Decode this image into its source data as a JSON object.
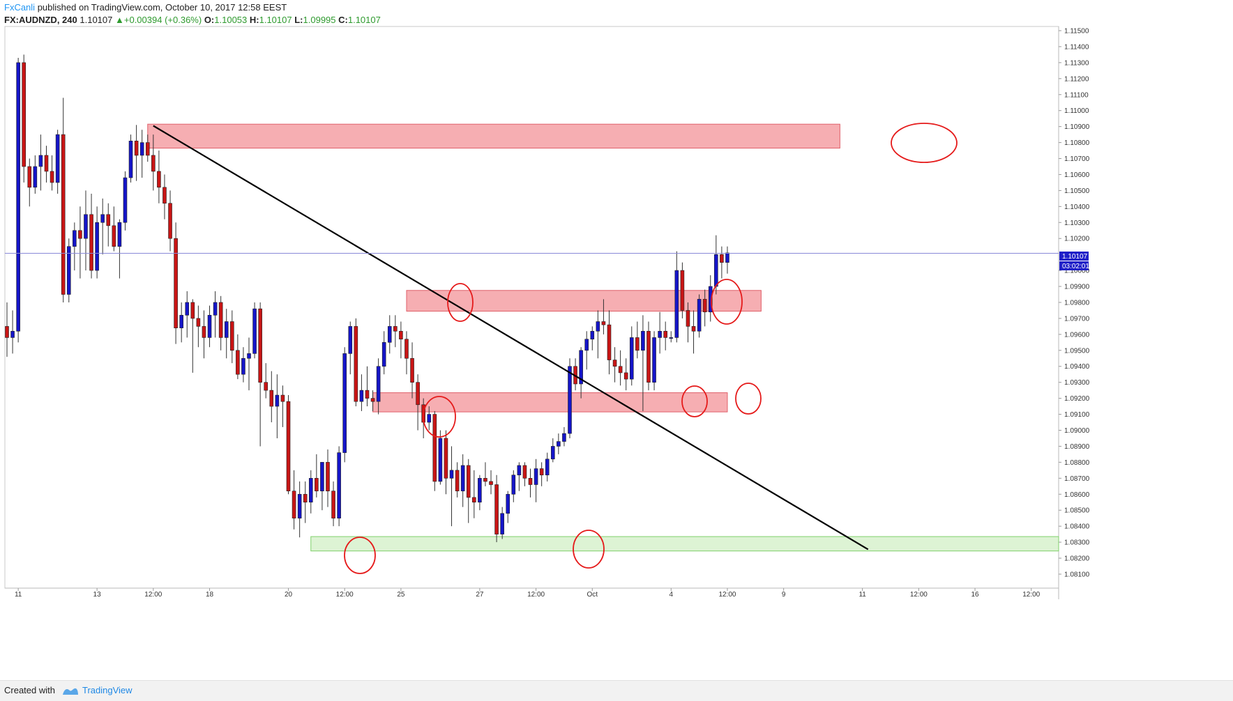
{
  "header": {
    "author": "FxCanli",
    "published": " published on TradingView.com, October 10, 2017 12:58 EEST",
    "symbol": "FX:AUDNZD, 240",
    "last": "1.10107",
    "change": "+0.00394 (+0.36%)",
    "o_label": "O:",
    "o_value": "1.10053",
    "h_label": "H:",
    "h_value": "1.10107",
    "l_label": "L:",
    "l_value": "1.09995",
    "c_label": "C:",
    "c_value": "1.10107"
  },
  "footer": {
    "created_with": "Created with",
    "brand": "TradingView"
  },
  "price_tags": {
    "last_price": "1.10107",
    "countdown": "03:02:01"
  },
  "colors": {
    "up_candle": "#1515c8",
    "down_candle": "#c81515",
    "resistance_zone": "#f4a0a5",
    "support_zone": "#d9f2cf",
    "price_line": "#8a8ad8",
    "annotation": "#e51a1a"
  },
  "chart_data": {
    "type": "candlestick",
    "title": "FX:AUDNZD, 240",
    "xlabel": "",
    "ylabel": "",
    "ylim": [
      1.08146,
      1.1153
    ],
    "y_ticks": [
      "1.11500",
      "1.11400",
      "1.11300",
      "1.11200",
      "1.11100",
      "1.11000",
      "1.10900",
      "1.10800",
      "1.10700",
      "1.10600",
      "1.10500",
      "1.10400",
      "1.10300",
      "1.10200",
      "1.10000",
      "1.09900",
      "1.09800",
      "1.09700",
      "1.09600",
      "1.09500",
      "1.09400",
      "1.09300",
      "1.09200",
      "1.09100",
      "1.09000",
      "1.08900",
      "1.08800",
      "1.08700",
      "1.08600",
      "1.08500",
      "1.08400",
      "1.08300",
      "1.08200",
      "1.08100"
    ],
    "x_ticks": [
      {
        "label": "11",
        "bar": 2
      },
      {
        "label": "13",
        "bar": 16
      },
      {
        "label": "12:00",
        "bar": 26
      },
      {
        "label": "18",
        "bar": 36
      },
      {
        "label": "20",
        "bar": 50
      },
      {
        "label": "12:00",
        "bar": 60
      },
      {
        "label": "25",
        "bar": 70
      },
      {
        "label": "27",
        "bar": 84
      },
      {
        "label": "12:00",
        "bar": 94
      },
      {
        "label": "Oct",
        "bar": 104
      },
      {
        "label": "4",
        "bar": 118
      },
      {
        "label": "12:00",
        "bar": 128
      },
      {
        "label": "9",
        "bar": 138
      },
      {
        "label": "11",
        "bar": 152
      },
      {
        "label": "12:00",
        "bar": 162
      },
      {
        "label": "16",
        "bar": 172
      },
      {
        "label": "12:00",
        "bar": 182
      }
    ],
    "last_price": 1.10107,
    "candles": [
      [
        1.0965,
        1.098,
        1.0946,
        1.0958
      ],
      [
        1.0958,
        1.0975,
        1.0948,
        1.0962
      ],
      [
        1.0962,
        1.1133,
        1.0955,
        1.113
      ],
      [
        1.113,
        1.1135,
        1.1055,
        1.1065
      ],
      [
        1.1065,
        1.107,
        1.104,
        1.1052
      ],
      [
        1.1052,
        1.1072,
        1.1048,
        1.1065
      ],
      [
        1.1065,
        1.1085,
        1.105,
        1.1072
      ],
      [
        1.1072,
        1.1078,
        1.1055,
        1.1062
      ],
      [
        1.1062,
        1.1072,
        1.105,
        1.1055
      ],
      [
        1.1055,
        1.1088,
        1.1048,
        1.1085
      ],
      [
        1.1085,
        1.1108,
        1.098,
        1.0985
      ],
      [
        1.0985,
        1.102,
        1.098,
        1.1015
      ],
      [
        1.1015,
        1.103,
        1.1,
        1.1025
      ],
      [
        1.1025,
        1.104,
        1.0995,
        1.102
      ],
      [
        1.102,
        1.105,
        1.1,
        1.1035
      ],
      [
        1.1035,
        1.1048,
        1.0995,
        1.1
      ],
      [
        1.1,
        1.104,
        1.0995,
        1.103
      ],
      [
        1.103,
        1.1045,
        1.101,
        1.1035
      ],
      [
        1.1035,
        1.1042,
        1.1015,
        1.1028
      ],
      [
        1.1028,
        1.104,
        1.1012,
        1.1015
      ],
      [
        1.1015,
        1.1032,
        1.0995,
        1.103
      ],
      [
        1.103,
        1.1062,
        1.1025,
        1.1058
      ],
      [
        1.1058,
        1.1085,
        1.1055,
        1.1081
      ],
      [
        1.1081,
        1.1091,
        1.1056,
        1.1072
      ],
      [
        1.1072,
        1.1088,
        1.1058,
        1.108
      ],
      [
        1.108,
        1.1085,
        1.1068,
        1.1072
      ],
      [
        1.1072,
        1.1085,
        1.105,
        1.1062
      ],
      [
        1.1062,
        1.1075,
        1.1042,
        1.1052
      ],
      [
        1.1052,
        1.106,
        1.1032,
        1.1042
      ],
      [
        1.1042,
        1.105,
        1.1012,
        1.102
      ],
      [
        1.102,
        1.103,
        1.0954,
        1.0964
      ],
      [
        1.0964,
        1.098,
        1.0955,
        1.0972
      ],
      [
        1.0972,
        1.0987,
        1.0958,
        1.098
      ],
      [
        1.098,
        1.0982,
        1.0936,
        1.097
      ],
      [
        1.097,
        1.0978,
        1.0952,
        1.0965
      ],
      [
        1.0965,
        1.0975,
        1.0945,
        1.0958
      ],
      [
        1.0958,
        1.0978,
        1.0952,
        1.0972
      ],
      [
        1.0972,
        1.0987,
        1.0958,
        1.098
      ],
      [
        1.098,
        1.0984,
        1.095,
        1.0958
      ],
      [
        1.0958,
        1.0976,
        1.0945,
        1.0968
      ],
      [
        1.0968,
        1.0975,
        1.0942,
        1.095
      ],
      [
        1.095,
        1.096,
        1.0932,
        1.0935
      ],
      [
        1.0935,
        1.0952,
        1.093,
        1.0945
      ],
      [
        1.0945,
        1.0958,
        1.0925,
        1.0948
      ],
      [
        1.0948,
        1.098,
        1.0945,
        1.0976
      ],
      [
        1.0976,
        1.098,
        1.089,
        1.093
      ],
      [
        1.093,
        1.0942,
        1.092,
        1.0925
      ],
      [
        1.0925,
        1.0937,
        1.0905,
        1.0915
      ],
      [
        1.0915,
        1.0935,
        1.0895,
        1.0922
      ],
      [
        1.0922,
        1.0928,
        1.0902,
        1.0918
      ],
      [
        1.0918,
        1.0922,
        1.086,
        1.0862
      ],
      [
        1.0862,
        1.0875,
        1.0838,
        1.0845
      ],
      [
        1.0845,
        1.0868,
        1.0833,
        1.086
      ],
      [
        1.086,
        1.0868,
        1.0842,
        1.0855
      ],
      [
        1.0855,
        1.0875,
        1.0848,
        1.087
      ],
      [
        1.087,
        1.0885,
        1.0858,
        1.0862
      ],
      [
        1.0862,
        1.088,
        1.085,
        1.088
      ],
      [
        1.088,
        1.0888,
        1.0852,
        1.0862
      ],
      [
        1.0862,
        1.0868,
        1.084,
        1.0845
      ],
      [
        1.0845,
        1.089,
        1.084,
        1.0886
      ],
      [
        1.0886,
        1.0952,
        1.088,
        1.0948
      ],
      [
        1.0948,
        1.0968,
        1.0935,
        1.0965
      ],
      [
        1.0965,
        1.097,
        1.0915,
        1.0918
      ],
      [
        1.0918,
        1.0935,
        1.0912,
        1.0925
      ],
      [
        1.0925,
        1.094,
        1.0915,
        1.092
      ],
      [
        1.092,
        1.0925,
        1.0912,
        1.0918
      ],
      [
        1.0918,
        1.0945,
        1.091,
        1.094
      ],
      [
        1.094,
        1.0962,
        1.0935,
        1.0955
      ],
      [
        1.0955,
        1.0972,
        1.0948,
        1.0965
      ],
      [
        1.0965,
        1.0972,
        1.0952,
        1.0962
      ],
      [
        1.0962,
        1.0968,
        1.0945,
        1.0957
      ],
      [
        1.0957,
        1.0962,
        1.0935,
        1.0945
      ],
      [
        1.0945,
        1.0955,
        1.092,
        1.093
      ],
      [
        1.093,
        1.0935,
        1.09,
        1.0916
      ],
      [
        1.0916,
        1.092,
        1.0895,
        1.0905
      ],
      [
        1.0905,
        1.0915,
        1.09,
        1.091
      ],
      [
        1.091,
        1.0912,
        1.0862,
        1.0868
      ],
      [
        1.0868,
        1.09,
        1.0866,
        1.0895
      ],
      [
        1.0895,
        1.09,
        1.086,
        1.087
      ],
      [
        1.087,
        1.089,
        1.084,
        1.0875
      ],
      [
        1.0875,
        1.088,
        1.0858,
        1.0862
      ],
      [
        1.0862,
        1.0885,
        1.0852,
        1.0878
      ],
      [
        1.0878,
        1.0882,
        1.0842,
        1.0858
      ],
      [
        1.0858,
        1.0875,
        1.0845,
        1.0855
      ],
      [
        1.0855,
        1.0872,
        1.085,
        1.087
      ],
      [
        1.087,
        1.088,
        1.0865,
        1.0868
      ],
      [
        1.0868,
        1.0875,
        1.086,
        1.0866
      ],
      [
        1.0866,
        1.0872,
        1.083,
        1.0835
      ],
      [
        1.0835,
        1.0852,
        1.0832,
        1.0848
      ],
      [
        1.0848,
        1.0862,
        1.0842,
        1.086
      ],
      [
        1.086,
        1.0875,
        1.0855,
        1.0872
      ],
      [
        1.0872,
        1.088,
        1.0862,
        1.0878
      ],
      [
        1.0878,
        1.088,
        1.0865,
        1.087
      ],
      [
        1.087,
        1.0876,
        1.0858,
        1.0866
      ],
      [
        1.0866,
        1.0882,
        1.0855,
        1.0876
      ],
      [
        1.0876,
        1.088,
        1.0865,
        1.0872
      ],
      [
        1.0872,
        1.0886,
        1.0868,
        1.0882
      ],
      [
        1.0882,
        1.0895,
        1.088,
        1.089
      ],
      [
        1.089,
        1.0898,
        1.0885,
        1.0893
      ],
      [
        1.0893,
        1.0902,
        1.089,
        1.0898
      ],
      [
        1.0898,
        1.0945,
        1.0895,
        1.094
      ],
      [
        1.094,
        1.0945,
        1.0925,
        1.0929
      ],
      [
        1.0929,
        1.0952,
        1.092,
        1.095
      ],
      [
        1.095,
        1.0962,
        1.0938,
        1.0957
      ],
      [
        1.0957,
        1.0965,
        1.095,
        1.0962
      ],
      [
        1.0962,
        1.0975,
        1.0945,
        1.0968
      ],
      [
        1.0968,
        1.0982,
        1.096,
        1.0966
      ],
      [
        1.0966,
        1.0975,
        1.0935,
        1.0944
      ],
      [
        1.0944,
        1.0952,
        1.093,
        1.094
      ],
      [
        1.094,
        1.095,
        1.0928,
        1.0936
      ],
      [
        1.0936,
        1.0945,
        1.0925,
        1.0932
      ],
      [
        1.0932,
        1.0965,
        1.0928,
        1.0958
      ],
      [
        1.0958,
        1.0968,
        1.0945,
        1.095
      ],
      [
        1.095,
        1.0972,
        1.0912,
        1.0962
      ],
      [
        1.0962,
        1.0968,
        1.0925,
        1.093
      ],
      [
        1.093,
        1.0962,
        1.0925,
        1.0958
      ],
      [
        1.0958,
        1.0974,
        1.0948,
        1.0962
      ],
      [
        1.0962,
        1.0968,
        1.095,
        1.0958
      ],
      [
        1.0958,
        1.0962,
        1.0955,
        1.0958
      ],
      [
        1.0958,
        1.1012,
        1.0955,
        1.1
      ],
      [
        1.1,
        1.1005,
        1.097,
        1.0975
      ],
      [
        1.0975,
        1.098,
        1.0955,
        1.0965
      ],
      [
        1.0965,
        1.0975,
        1.0948,
        1.0962
      ],
      [
        1.0962,
        1.0985,
        1.0958,
        1.0982
      ],
      [
        1.0982,
        1.0988,
        1.0965,
        1.0974
      ],
      [
        1.0974,
        1.0997,
        1.0968,
        1.099
      ],
      [
        1.099,
        1.1022,
        1.0985,
        1.101
      ],
      [
        1.101,
        1.1015,
        1.0995,
        1.1005
      ],
      [
        1.1005,
        1.1015,
        1.0998,
        1.1011
      ]
    ]
  },
  "drawings": {
    "resistance_zones": [
      {
        "from_bar": 25,
        "to_bar": 148,
        "low": 1.10765,
        "high": 1.10915
      },
      {
        "from_bar": 71,
        "to_bar": 134,
        "low": 1.09745,
        "high": 1.09875
      },
      {
        "from_bar": 65,
        "to_bar": 128,
        "low": 1.09115,
        "high": 1.09235
      }
    ],
    "support_zones": [
      {
        "from_bar": 54,
        "to_bar": 195,
        "low": 1.08245,
        "high": 1.08335
      }
    ],
    "trendline": {
      "from_bar": 26,
      "from_price": 1.10905,
      "to_bar": 153,
      "to_price": 1.08255
    }
  }
}
